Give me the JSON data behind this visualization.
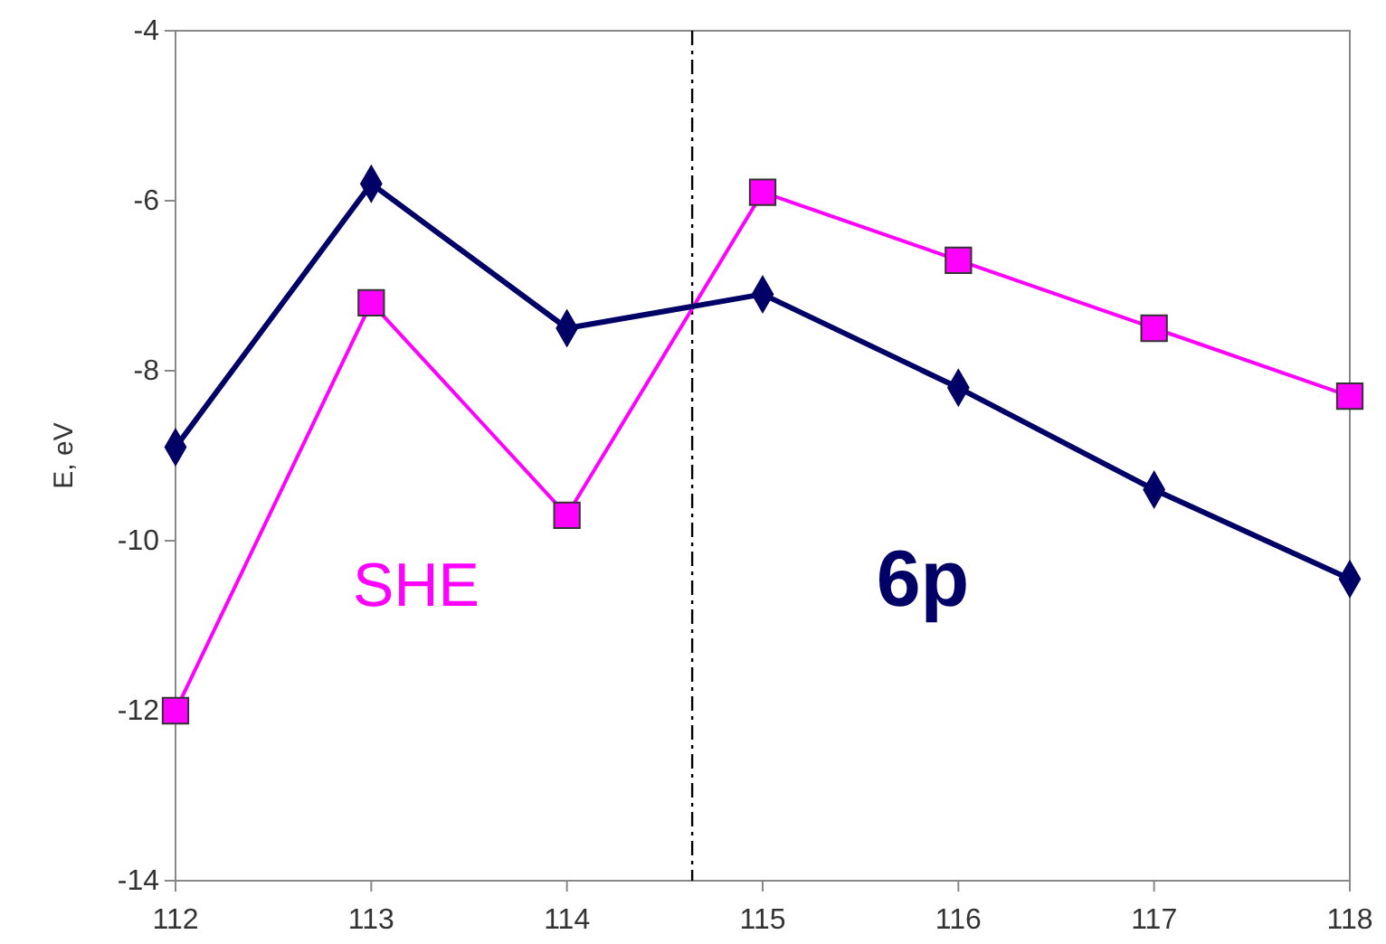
{
  "chart_data": {
    "type": "line",
    "ylabel": "E, eV",
    "x": [
      112,
      113,
      114,
      115,
      116,
      117,
      118
    ],
    "xlim": [
      112,
      118
    ],
    "xticks": [
      112,
      113,
      114,
      115,
      116,
      117,
      118
    ],
    "ylim": [
      -14,
      -4
    ],
    "yticks": [
      -14,
      -12,
      -10,
      -8,
      -6,
      -4
    ],
    "grid": false,
    "series": [
      {
        "name": "SHE",
        "color": "#ff00ff",
        "marker": "square",
        "values": [
          -12.0,
          -7.2,
          -9.7,
          -5.9,
          -6.7,
          -7.5,
          -8.3
        ]
      },
      {
        "name": "6p",
        "color": "#000066",
        "marker": "diamond",
        "values": [
          -8.9,
          -5.8,
          -7.5,
          -7.1,
          -8.2,
          -9.4,
          -10.45
        ]
      }
    ],
    "ref_lines": [
      {
        "axis": "x",
        "value": 114.64,
        "color": "#000000"
      }
    ]
  }
}
